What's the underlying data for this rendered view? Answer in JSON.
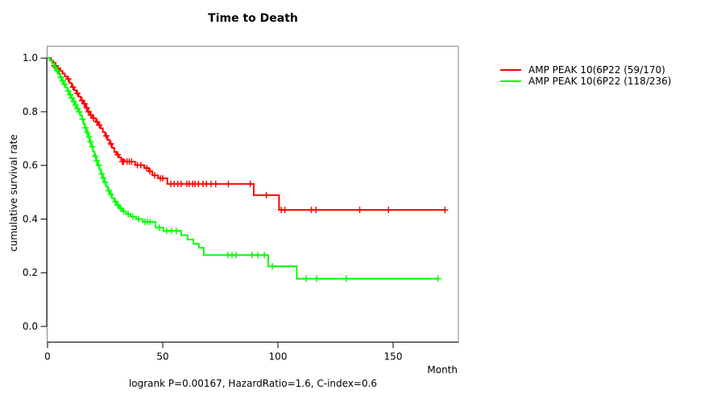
{
  "chart_data": {
    "type": "line",
    "subtype": "kaplan_meier_step_survival",
    "title": "Time to Death",
    "xlabel": "Month",
    "ylabel": "cumulative survival rate",
    "caption": "logrank P=0.00167, HazardRatio=1.6, C-index=0.6",
    "xlim": [
      0,
      178
    ],
    "ylim": [
      0,
      1.04
    ],
    "grid": false,
    "legend_position": "right-outside",
    "x_ticks": [
      {
        "value": 0,
        "label": "0"
      },
      {
        "value": 50,
        "label": "50"
      },
      {
        "value": 100,
        "label": "100"
      },
      {
        "value": 150,
        "label": "150"
      }
    ],
    "y_ticks": [
      {
        "value": 0.0,
        "label": "0.0"
      },
      {
        "value": 0.2,
        "label": "0.2"
      },
      {
        "value": 0.4,
        "label": "0.4"
      },
      {
        "value": 0.6,
        "label": "0.6"
      },
      {
        "value": 0.8,
        "label": "0.8"
      },
      {
        "value": 1.0,
        "label": "1.0"
      }
    ],
    "series": [
      {
        "name": "AMP PEAK 10(6P22 (59/170)",
        "color": "#ff0000",
        "end_time": 172.5,
        "steps": [
          [
            0,
            1.0
          ],
          [
            1.5,
            0.99
          ],
          [
            2.5,
            0.982
          ],
          [
            3.5,
            0.971
          ],
          [
            4.5,
            0.962
          ],
          [
            5.5,
            0.952
          ],
          [
            6.5,
            0.942
          ],
          [
            7.5,
            0.932
          ],
          [
            8.5,
            0.922
          ],
          [
            9.5,
            0.907
          ],
          [
            10.5,
            0.892
          ],
          [
            11.5,
            0.88
          ],
          [
            12.5,
            0.868
          ],
          [
            13.5,
            0.856
          ],
          [
            14.5,
            0.842
          ],
          [
            15.5,
            0.83
          ],
          [
            16.5,
            0.815
          ],
          [
            17.5,
            0.8
          ],
          [
            18.5,
            0.788
          ],
          [
            19.5,
            0.776
          ],
          [
            21,
            0.762
          ],
          [
            22,
            0.75
          ],
          [
            23,
            0.738
          ],
          [
            24,
            0.724
          ],
          [
            25,
            0.71
          ],
          [
            26,
            0.695
          ],
          [
            27,
            0.68
          ],
          [
            28,
            0.665
          ],
          [
            29,
            0.65
          ],
          [
            30,
            0.64
          ],
          [
            31,
            0.63
          ],
          [
            32,
            0.62
          ],
          [
            33.5,
            0.614
          ],
          [
            38,
            0.601
          ],
          [
            42,
            0.59
          ],
          [
            44,
            0.578
          ],
          [
            45.5,
            0.563
          ],
          [
            48,
            0.552
          ],
          [
            52,
            0.531
          ],
          [
            89.5,
            0.489
          ],
          [
            100.5,
            0.434
          ]
        ],
        "censor_marks": [
          [
            3,
            0.971
          ],
          [
            5,
            0.952
          ],
          [
            9,
            0.922
          ],
          [
            11,
            0.892
          ],
          [
            13,
            0.868
          ],
          [
            15,
            0.842
          ],
          [
            16,
            0.83
          ],
          [
            17,
            0.815
          ],
          [
            17.8,
            0.8
          ],
          [
            18.8,
            0.788
          ],
          [
            20,
            0.776
          ],
          [
            21.5,
            0.762
          ],
          [
            22.5,
            0.75
          ],
          [
            25.5,
            0.71
          ],
          [
            27.5,
            0.68
          ],
          [
            30.5,
            0.64
          ],
          [
            32.5,
            0.614
          ],
          [
            33,
            0.614
          ],
          [
            34.5,
            0.614
          ],
          [
            35.5,
            0.614
          ],
          [
            36.5,
            0.614
          ],
          [
            39,
            0.601
          ],
          [
            40.5,
            0.601
          ],
          [
            43,
            0.59
          ],
          [
            44.5,
            0.578
          ],
          [
            46.5,
            0.563
          ],
          [
            49,
            0.552
          ],
          [
            50,
            0.552
          ],
          [
            53.5,
            0.531
          ],
          [
            55,
            0.531
          ],
          [
            56.5,
            0.531
          ],
          [
            58,
            0.531
          ],
          [
            60.5,
            0.531
          ],
          [
            61.5,
            0.531
          ],
          [
            63,
            0.531
          ],
          [
            64,
            0.531
          ],
          [
            65.5,
            0.531
          ],
          [
            67.5,
            0.531
          ],
          [
            69,
            0.531
          ],
          [
            71,
            0.531
          ],
          [
            73,
            0.531
          ],
          [
            78.5,
            0.531
          ],
          [
            88,
            0.531
          ],
          [
            95,
            0.489
          ],
          [
            101.5,
            0.434
          ],
          [
            103,
            0.434
          ],
          [
            114.5,
            0.434
          ],
          [
            116.5,
            0.434
          ],
          [
            135.5,
            0.434
          ],
          [
            148,
            0.434
          ],
          [
            172.5,
            0.434
          ]
        ]
      },
      {
        "name": "AMP PEAK 10(6P22 (118/236)",
        "color": "#00ff00",
        "end_time": 169.5,
        "steps": [
          [
            0,
            1.0
          ],
          [
            1,
            0.992
          ],
          [
            2,
            0.979
          ],
          [
            3,
            0.966
          ],
          [
            3.8,
            0.953
          ],
          [
            4.6,
            0.941
          ],
          [
            5.4,
            0.928
          ],
          [
            6.2,
            0.915
          ],
          [
            7,
            0.902
          ],
          [
            7.8,
            0.89
          ],
          [
            8.6,
            0.877
          ],
          [
            9.4,
            0.864
          ],
          [
            10.2,
            0.851
          ],
          [
            11,
            0.838
          ],
          [
            11.8,
            0.825
          ],
          [
            12.6,
            0.812
          ],
          [
            13.4,
            0.799
          ],
          [
            14.2,
            0.786
          ],
          [
            15,
            0.772
          ],
          [
            15.6,
            0.755
          ],
          [
            16.2,
            0.74
          ],
          [
            16.9,
            0.723
          ],
          [
            17.6,
            0.706
          ],
          [
            18.3,
            0.688
          ],
          [
            19,
            0.67
          ],
          [
            19.7,
            0.652
          ],
          [
            20.4,
            0.634
          ],
          [
            21.1,
            0.617
          ],
          [
            21.8,
            0.601
          ],
          [
            22.5,
            0.585
          ],
          [
            23.2,
            0.569
          ],
          [
            23.9,
            0.553
          ],
          [
            24.6,
            0.537
          ],
          [
            25.4,
            0.521
          ],
          [
            26.2,
            0.506
          ],
          [
            27.1,
            0.492
          ],
          [
            28,
            0.478
          ],
          [
            29,
            0.465
          ],
          [
            30,
            0.452
          ],
          [
            31.2,
            0.44
          ],
          [
            32.5,
            0.429
          ],
          [
            34,
            0.419
          ],
          [
            36,
            0.409
          ],
          [
            38.5,
            0.4
          ],
          [
            41.3,
            0.39
          ],
          [
            46.9,
            0.368
          ],
          [
            50.3,
            0.356
          ],
          [
            58,
            0.34
          ],
          [
            60.8,
            0.324
          ],
          [
            63.3,
            0.308
          ],
          [
            65.7,
            0.293
          ],
          [
            67.8,
            0.266
          ],
          [
            95.8,
            0.224
          ],
          [
            108.2,
            0.178
          ]
        ],
        "censor_marks": [
          [
            3.4,
            0.966
          ],
          [
            4.2,
            0.953
          ],
          [
            5.8,
            0.928
          ],
          [
            6.6,
            0.915
          ],
          [
            7.4,
            0.902
          ],
          [
            9,
            0.877
          ],
          [
            9.8,
            0.864
          ],
          [
            10.6,
            0.851
          ],
          [
            11.4,
            0.838
          ],
          [
            12.2,
            0.825
          ],
          [
            13,
            0.812
          ],
          [
            13.8,
            0.799
          ],
          [
            15.2,
            0.772
          ],
          [
            16.5,
            0.74
          ],
          [
            17.2,
            0.723
          ],
          [
            18,
            0.706
          ],
          [
            18.6,
            0.688
          ],
          [
            19.4,
            0.67
          ],
          [
            20.8,
            0.634
          ],
          [
            21.4,
            0.617
          ],
          [
            22.2,
            0.601
          ],
          [
            23.5,
            0.569
          ],
          [
            24.2,
            0.553
          ],
          [
            25,
            0.537
          ],
          [
            26.6,
            0.506
          ],
          [
            27.5,
            0.492
          ],
          [
            29.5,
            0.465
          ],
          [
            30.5,
            0.452
          ],
          [
            31.8,
            0.44
          ],
          [
            33,
            0.429
          ],
          [
            35,
            0.419
          ],
          [
            37,
            0.409
          ],
          [
            39.5,
            0.4
          ],
          [
            42.3,
            0.39
          ],
          [
            43.4,
            0.39
          ],
          [
            44.5,
            0.39
          ],
          [
            48.5,
            0.368
          ],
          [
            51.7,
            0.356
          ],
          [
            53.8,
            0.356
          ],
          [
            55.9,
            0.356
          ],
          [
            78.3,
            0.266
          ],
          [
            80.1,
            0.266
          ],
          [
            81.8,
            0.266
          ],
          [
            88.8,
            0.266
          ],
          [
            91.3,
            0.266
          ],
          [
            94.1,
            0.266
          ],
          [
            97.6,
            0.224
          ],
          [
            112.3,
            0.178
          ],
          [
            116.8,
            0.178
          ],
          [
            129.7,
            0.178
          ],
          [
            169.5,
            0.178
          ]
        ]
      }
    ]
  }
}
